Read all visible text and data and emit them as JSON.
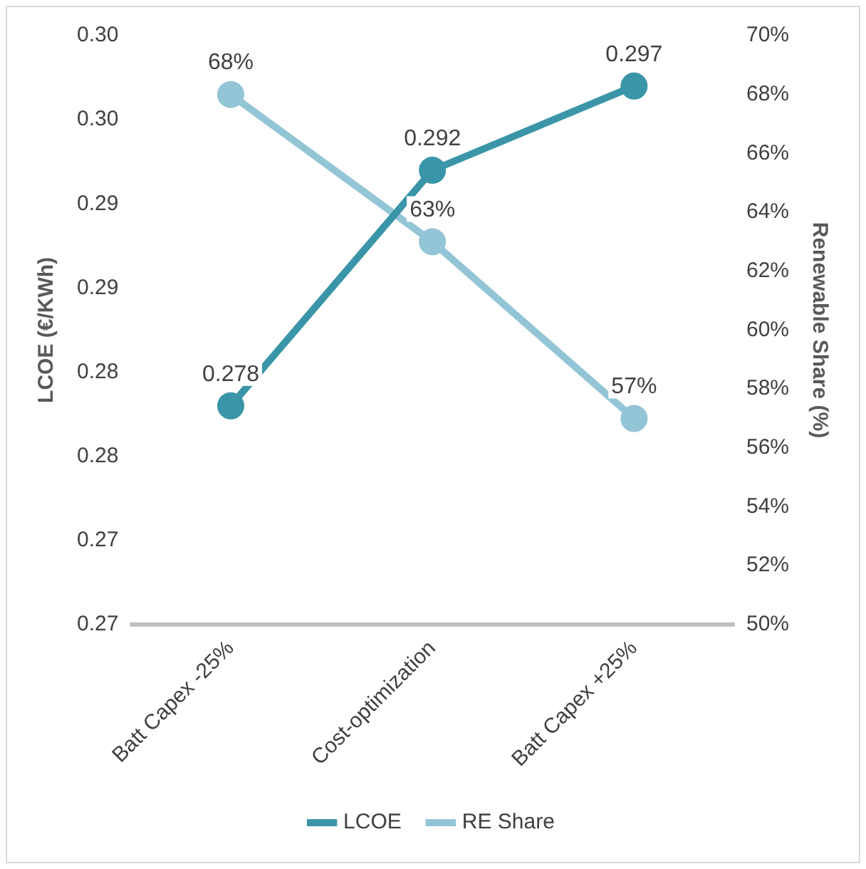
{
  "chart_data": {
    "type": "line",
    "categories": [
      "Batt Capex -25%",
      "Cost-optimization",
      "Batt Capex +25%"
    ],
    "series": [
      {
        "name": "LCOE",
        "color": "#3a95a8",
        "values": [
          0.278,
          0.292,
          0.297
        ],
        "value_labels": [
          "0.278",
          "0.292",
          "0.297"
        ]
      },
      {
        "name": "RE Share",
        "color": "#93c5d6",
        "values": [
          68,
          63,
          57
        ],
        "axis": "y2",
        "value_labels": [
          "68%",
          "63%",
          "57%"
        ]
      }
    ],
    "ylabel": "LCOE (€/KWh)",
    "y2label": "Renewable Share (%)",
    "ylim": [
      0.265,
      0.3
    ],
    "yticks": [
      {
        "value": 0.265,
        "label": "0.27"
      },
      {
        "value": 0.27,
        "label": "0.27"
      },
      {
        "value": 0.275,
        "label": "0.28"
      },
      {
        "value": 0.28,
        "label": "0.28"
      },
      {
        "value": 0.285,
        "label": "0.29"
      },
      {
        "value": 0.29,
        "label": "0.29"
      },
      {
        "value": 0.295,
        "label": "0.30"
      },
      {
        "value": 0.3,
        "label": "0.30"
      }
    ],
    "y2lim": [
      50,
      70
    ],
    "y2ticks": [
      {
        "value": 50,
        "label": "50%"
      },
      {
        "value": 52,
        "label": "52%"
      },
      {
        "value": 54,
        "label": "54%"
      },
      {
        "value": 56,
        "label": "56%"
      },
      {
        "value": 58,
        "label": "58%"
      },
      {
        "value": 60,
        "label": "60%"
      },
      {
        "value": 62,
        "label": "62%"
      },
      {
        "value": 64,
        "label": "64%"
      },
      {
        "value": 66,
        "label": "66%"
      },
      {
        "value": 68,
        "label": "68%"
      },
      {
        "value": 70,
        "label": "70%"
      }
    ],
    "legend": "bottom",
    "marker": "circle",
    "line_style": "solid"
  }
}
